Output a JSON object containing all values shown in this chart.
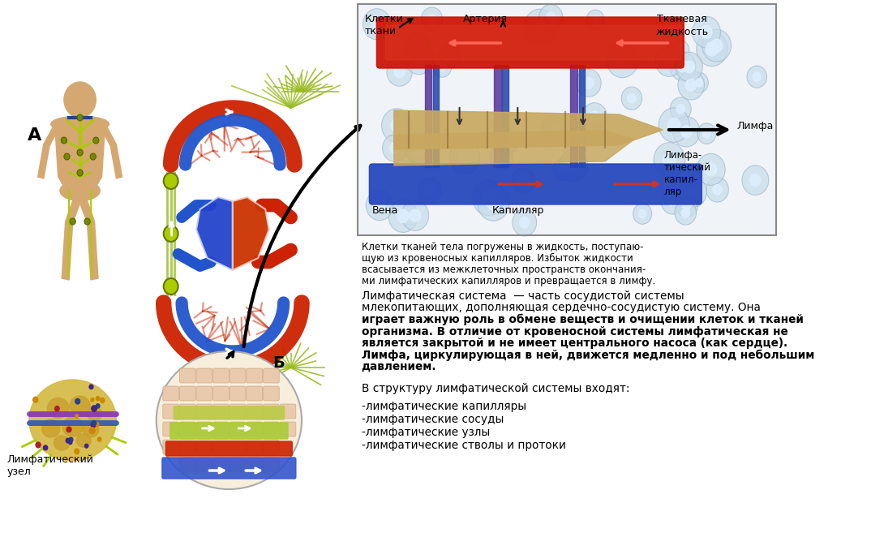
{
  "bg_color": "#ffffff",
  "main_text_line1": "Лимфатическая система  — часть сосудистой системы",
  "main_text_line2": "млекопитающих, дополняющая сердечно-сосудистую систему. Она",
  "main_text_line3": "играет важную роль в обмене веществ и очищении клеток и тканей",
  "main_text_line4": "организма. В отличие от кровеносной системы лимфатическая не",
  "main_text_line5": "является закрытой и не имеет центрального насоса (как сердце).",
  "main_text_line6": "Лимфа, циркулирующая в ней, движется медленно и под небольшим",
  "main_text_line7": "давлением.",
  "structure_header": "В структуру лимфатической системы входят:",
  "structure_items": [
    "-лимфатические капилляры",
    "-лимфатические сосуды",
    "-лимфатические узлы",
    "-лимфатические стволы и протоки"
  ],
  "caption_line1": "Клетки тканей тела погружены в жидкость, поступаю-",
  "caption_line2": "щую из кровеносных капилляров. Избыток жидкости",
  "caption_line3": "всасывается из межклеточных пространств окончания-",
  "caption_line4": "ми лимфатических капилляров и превращается в лимфу.",
  "label_A": "А",
  "label_B": "Б",
  "label_lymph_node": "Лимфатический\nузел",
  "label_artery": "Артерия",
  "label_tissue_fluid": "Тканевая\nжидкость",
  "label_tissue_cells": "Клетки\nткани",
  "label_lymph": "Лимфа",
  "label_lymph_cap": "Лимфа-\nтический\nкапил-\nляр",
  "label_vein": "Вена",
  "label_capillary": "Капилляр",
  "body_color": "#d4a870",
  "lymph_vessel_color": "#aacc00",
  "artery_color": "#cc1100",
  "vein_color": "#2244bb",
  "lymph_cap_color": "#c8a855",
  "blue_loop_color": "#2255cc",
  "red_loop_color": "#cc2200",
  "green_net_color": "#99bb22",
  "heart_red": "#cc3300",
  "heart_blue": "#2244cc",
  "cell_bg": "#ddeeff",
  "cell_outline": "#aabbcc"
}
